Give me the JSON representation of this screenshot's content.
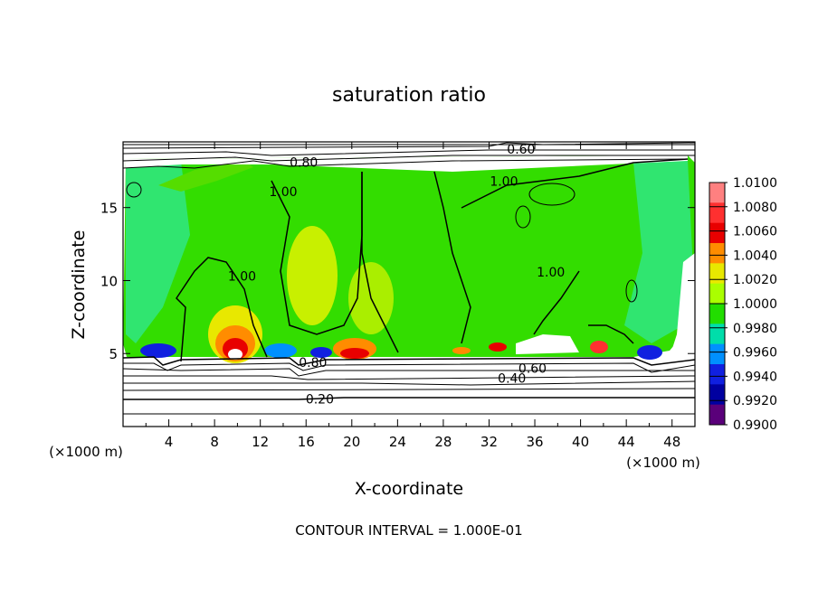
{
  "chart_data": {
    "type": "heatmap",
    "title": "saturation ratio",
    "xlabel": "X-coordinate",
    "ylabel": "Z-coordinate",
    "x_unit_left": "(×1000 m)",
    "x_unit_right": "(×1000 m)",
    "xlim": [
      0,
      50
    ],
    "ylim": [
      0,
      19.5
    ],
    "x_ticks": [
      4,
      8,
      12,
      16,
      20,
      24,
      28,
      32,
      36,
      40,
      44,
      48
    ],
    "y_ticks": [
      5,
      10,
      15
    ],
    "footer": "CONTOUR INTERVAL = 1.000E-01",
    "colorbar": {
      "levels": [
        "1.0100",
        "1.0080",
        "1.0060",
        "1.0040",
        "1.0020",
        "1.0000",
        "0.9980",
        "0.9960",
        "0.9940",
        "0.9920",
        "0.9900"
      ],
      "colors": [
        "#ff8080",
        "#ff3030",
        "#e80000",
        "#ff8c00",
        "#e8e800",
        "#aaff00",
        "#22dd00",
        "#00ddaa",
        "#0090ff",
        "#1020e0",
        "#0000a0",
        "#5a007a"
      ]
    },
    "contour_labels": [
      {
        "text": "0.60",
        "x": 34.8,
        "z": 19.0
      },
      {
        "text": "0.80",
        "x": 15.8,
        "z": 18.1
      },
      {
        "text": "1.00",
        "x": 14.0,
        "z": 16.1
      },
      {
        "text": "1.00",
        "x": 33.3,
        "z": 16.8
      },
      {
        "text": "1.00",
        "x": 10.4,
        "z": 10.3
      },
      {
        "text": "1.00",
        "x": 37.4,
        "z": 10.6
      },
      {
        "text": "0.80",
        "x": 16.6,
        "z": 4.4
      },
      {
        "text": "0.60",
        "x": 35.8,
        "z": 4.0
      },
      {
        "text": "0.40",
        "x": 34.0,
        "z": 3.3
      },
      {
        "text": "0.20",
        "x": 17.2,
        "z": 1.9
      }
    ]
  }
}
